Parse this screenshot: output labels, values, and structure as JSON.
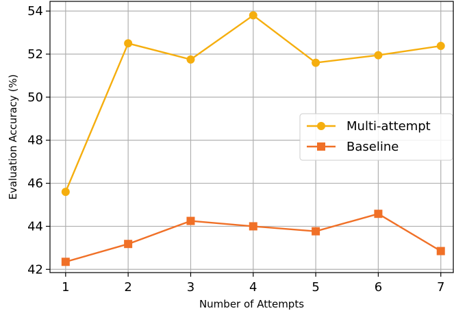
{
  "chart_data": {
    "type": "line",
    "title": "",
    "xlabel": "Number of Attempts",
    "ylabel": "Evaluation Accuracy (%)",
    "x": [
      1,
      2,
      3,
      4,
      5,
      6,
      7
    ],
    "x_ticks": [
      "1",
      "2",
      "3",
      "4",
      "5",
      "6",
      "7"
    ],
    "y_ticks": [
      "42",
      "44",
      "46",
      "48",
      "50",
      "52",
      "54"
    ],
    "xlim": [
      0.75,
      7.2
    ],
    "ylim": [
      41.85,
      54.45
    ],
    "grid": true,
    "legend_position": "center-right",
    "series": [
      {
        "name": "Multi-attempt",
        "color": "#f5ae0e",
        "marker": "circle",
        "values": [
          45.6,
          52.5,
          51.75,
          53.8,
          51.6,
          51.95,
          52.38
        ]
      },
      {
        "name": "Baseline",
        "color": "#f07027",
        "marker": "square",
        "values": [
          42.35,
          43.18,
          44.25,
          44.0,
          43.77,
          44.58,
          42.85
        ]
      }
    ]
  }
}
